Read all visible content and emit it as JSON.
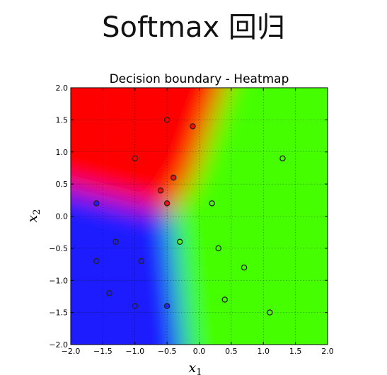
{
  "page": {
    "title": "Softmax 回归"
  },
  "chart_data": {
    "type": "heatmap",
    "title": "Decision boundary - Heatmap",
    "xlabel": "x",
    "xlabel_sub": "1",
    "ylabel": "x",
    "ylabel_sub": "2",
    "xlim": [
      -2.0,
      2.0
    ],
    "ylim": [
      -2.0,
      2.0
    ],
    "xticks": [
      "−2.0",
      "−1.5",
      "−1.0",
      "−0.5",
      "0.0",
      "0.5",
      "1.0",
      "1.5",
      "2.0"
    ],
    "yticks": [
      "−2.0",
      "−1.5",
      "−1.0",
      "−0.5",
      "0.0",
      "0.5",
      "1.0",
      "1.5",
      "2.0"
    ],
    "grid": true,
    "class_colors": {
      "red": "#ff0000",
      "green": "#44ff00",
      "blue": "#1a1aff"
    },
    "series": [
      {
        "class": "red",
        "x": [
          -0.5,
          -0.1,
          -1.0,
          -0.4,
          -0.6,
          -0.5
        ],
        "y": [
          1.5,
          1.4,
          0.9,
          0.6,
          0.4,
          0.2
        ]
      },
      {
        "class": "blue",
        "x": [
          -1.6,
          -1.3,
          -1.6,
          -0.9,
          -1.4,
          -1.0,
          -0.5
        ],
        "y": [
          0.2,
          -0.4,
          -0.7,
          -0.7,
          -1.2,
          -1.4,
          -1.4
        ]
      },
      {
        "class": "green",
        "x": [
          1.3,
          0.2,
          -0.3,
          0.3,
          0.7,
          0.4,
          1.1
        ],
        "y": [
          0.9,
          0.2,
          -0.4,
          -0.5,
          -0.8,
          -1.3,
          -1.5
        ]
      }
    ]
  }
}
